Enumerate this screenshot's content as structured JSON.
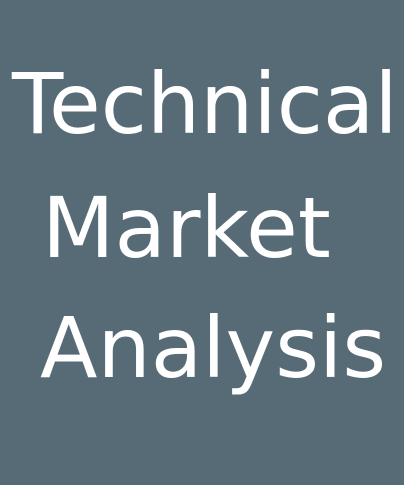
{
  "title_lines": [
    "Technical",
    "Market",
    "Analysis"
  ],
  "colors": {
    "background": "#566b76",
    "text": "#ffffff"
  }
}
